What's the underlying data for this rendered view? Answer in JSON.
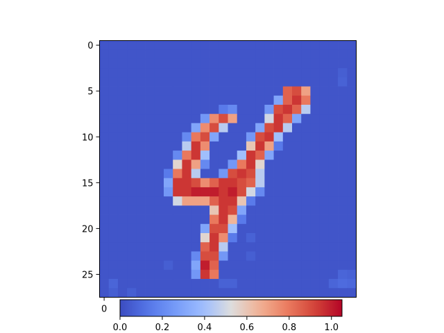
{
  "chart_data": {
    "type": "heatmap",
    "title": "",
    "xlabel": "",
    "ylabel": "",
    "colormap": "coolwarm",
    "rows": 28,
    "cols": 28,
    "xlim": [
      -0.5,
      27.5
    ],
    "ylim": [
      27.5,
      -0.5
    ],
    "y_ticks": [
      "0",
      "5",
      "10",
      "15",
      "20",
      "25"
    ],
    "x_ticks": [
      "0"
    ],
    "colorbar": {
      "orientation": "horizontal",
      "range": [
        0.0,
        1.05
      ],
      "ticks": [
        "0.0",
        "0.2",
        "0.4",
        "0.6",
        "0.8",
        "1.0"
      ]
    },
    "background_value": 0.03,
    "cells": [
      [
        5,
        21,
        0.9
      ],
      [
        5,
        20,
        0.85
      ],
      [
        5,
        22,
        0.7
      ],
      [
        6,
        20,
        0.85
      ],
      [
        6,
        21,
        0.95
      ],
      [
        6,
        22,
        0.8
      ],
      [
        6,
        19,
        0.3
      ],
      [
        7,
        19,
        0.9
      ],
      [
        7,
        20,
        0.95
      ],
      [
        7,
        21,
        0.85
      ],
      [
        7,
        22,
        0.45
      ],
      [
        7,
        18,
        0.25
      ],
      [
        7,
        13,
        0.15
      ],
      [
        7,
        14,
        0.2
      ],
      [
        8,
        11,
        0.25
      ],
      [
        8,
        12,
        0.75
      ],
      [
        8,
        13,
        0.9
      ],
      [
        8,
        14,
        0.7
      ],
      [
        8,
        18,
        0.5
      ],
      [
        8,
        19,
        0.95
      ],
      [
        8,
        20,
        0.85
      ],
      [
        8,
        21,
        0.3
      ],
      [
        9,
        10,
        0.3
      ],
      [
        9,
        11,
        0.75
      ],
      [
        9,
        12,
        0.9
      ],
      [
        9,
        13,
        0.45
      ],
      [
        9,
        17,
        0.3
      ],
      [
        9,
        18,
        0.9
      ],
      [
        9,
        19,
        0.95
      ],
      [
        9,
        20,
        0.45
      ],
      [
        10,
        9,
        0.2
      ],
      [
        10,
        10,
        0.8
      ],
      [
        10,
        11,
        0.9
      ],
      [
        10,
        12,
        0.3
      ],
      [
        10,
        16,
        0.25
      ],
      [
        10,
        17,
        0.9
      ],
      [
        10,
        18,
        0.95
      ],
      [
        10,
        19,
        0.4
      ],
      [
        11,
        9,
        0.45
      ],
      [
        11,
        10,
        0.95
      ],
      [
        11,
        11,
        0.75
      ],
      [
        11,
        16,
        0.6
      ],
      [
        11,
        17,
        0.95
      ],
      [
        11,
        18,
        0.7
      ],
      [
        11,
        19,
        0.15
      ],
      [
        12,
        8,
        0.2
      ],
      [
        12,
        9,
        0.8
      ],
      [
        12,
        10,
        0.95
      ],
      [
        12,
        11,
        0.4
      ],
      [
        12,
        15,
        0.4
      ],
      [
        12,
        16,
        0.95
      ],
      [
        12,
        17,
        0.85
      ],
      [
        12,
        18,
        0.3
      ],
      [
        13,
        8,
        0.55
      ],
      [
        13,
        9,
        0.95
      ],
      [
        13,
        10,
        0.7
      ],
      [
        13,
        11,
        0.2
      ],
      [
        13,
        14,
        0.25
      ],
      [
        13,
        15,
        0.8
      ],
      [
        13,
        16,
        0.95
      ],
      [
        13,
        17,
        0.55
      ],
      [
        14,
        7,
        0.15
      ],
      [
        14,
        8,
        0.8
      ],
      [
        14,
        9,
        0.95
      ],
      [
        14,
        10,
        0.45
      ],
      [
        14,
        13,
        0.25
      ],
      [
        14,
        14,
        0.9
      ],
      [
        14,
        15,
        0.95
      ],
      [
        14,
        16,
        0.9
      ],
      [
        14,
        17,
        0.45
      ],
      [
        15,
        7,
        0.3
      ],
      [
        15,
        8,
        0.95
      ],
      [
        15,
        9,
        0.95
      ],
      [
        15,
        10,
        0.9
      ],
      [
        15,
        11,
        0.75
      ],
      [
        15,
        12,
        0.85
      ],
      [
        15,
        13,
        0.95
      ],
      [
        15,
        14,
        0.95
      ],
      [
        15,
        15,
        0.9
      ],
      [
        15,
        16,
        0.85
      ],
      [
        15,
        17,
        0.45
      ],
      [
        16,
        7,
        0.25
      ],
      [
        16,
        8,
        0.95
      ],
      [
        16,
        9,
        0.95
      ],
      [
        16,
        10,
        1.0
      ],
      [
        16,
        11,
        1.0
      ],
      [
        16,
        12,
        1.0
      ],
      [
        16,
        13,
        0.95
      ],
      [
        16,
        14,
        1.0
      ],
      [
        16,
        15,
        0.9
      ],
      [
        16,
        16,
        0.5
      ],
      [
        16,
        17,
        0.2
      ],
      [
        17,
        8,
        0.5
      ],
      [
        17,
        9,
        0.7
      ],
      [
        17,
        10,
        0.7
      ],
      [
        17,
        11,
        0.7
      ],
      [
        17,
        12,
        0.85
      ],
      [
        17,
        13,
        0.95
      ],
      [
        17,
        14,
        0.95
      ],
      [
        17,
        15,
        0.6
      ],
      [
        17,
        16,
        0.15
      ],
      [
        18,
        12,
        0.6
      ],
      [
        18,
        13,
        0.95
      ],
      [
        18,
        14,
        0.9
      ],
      [
        18,
        15,
        0.3
      ],
      [
        19,
        12,
        0.8
      ],
      [
        19,
        13,
        0.95
      ],
      [
        19,
        14,
        0.65
      ],
      [
        19,
        15,
        0.15
      ],
      [
        20,
        11,
        0.3
      ],
      [
        20,
        12,
        0.9
      ],
      [
        20,
        13,
        0.9
      ],
      [
        20,
        14,
        0.4
      ],
      [
        21,
        11,
        0.55
      ],
      [
        21,
        12,
        0.95
      ],
      [
        21,
        13,
        0.75
      ],
      [
        21,
        14,
        0.15
      ],
      [
        22,
        11,
        0.85
      ],
      [
        22,
        12,
        0.95
      ],
      [
        22,
        13,
        0.45
      ],
      [
        23,
        10,
        0.2
      ],
      [
        23,
        11,
        0.9
      ],
      [
        23,
        12,
        0.9
      ],
      [
        23,
        13,
        0.25
      ],
      [
        24,
        10,
        0.3
      ],
      [
        24,
        11,
        1.0
      ],
      [
        24,
        12,
        0.85
      ],
      [
        25,
        10,
        0.25
      ],
      [
        25,
        11,
        0.95
      ],
      [
        25,
        12,
        0.8
      ],
      [
        26,
        1,
        0.08
      ],
      [
        26,
        13,
        0.07
      ],
      [
        26,
        14,
        0.07
      ],
      [
        26,
        25,
        0.08
      ],
      [
        26,
        26,
        0.1
      ],
      [
        26,
        27,
        0.09
      ],
      [
        25,
        26,
        0.08
      ],
      [
        25,
        27,
        0.07
      ],
      [
        24,
        7,
        0.06
      ],
      [
        23,
        16,
        0.06
      ],
      [
        21,
        16,
        0.07
      ],
      [
        27,
        1,
        0.06
      ],
      [
        27,
        3,
        0.06
      ],
      [
        3,
        26,
        0.06
      ],
      [
        4,
        26,
        0.07
      ],
      [
        8,
        20,
        0.85
      ]
    ]
  }
}
